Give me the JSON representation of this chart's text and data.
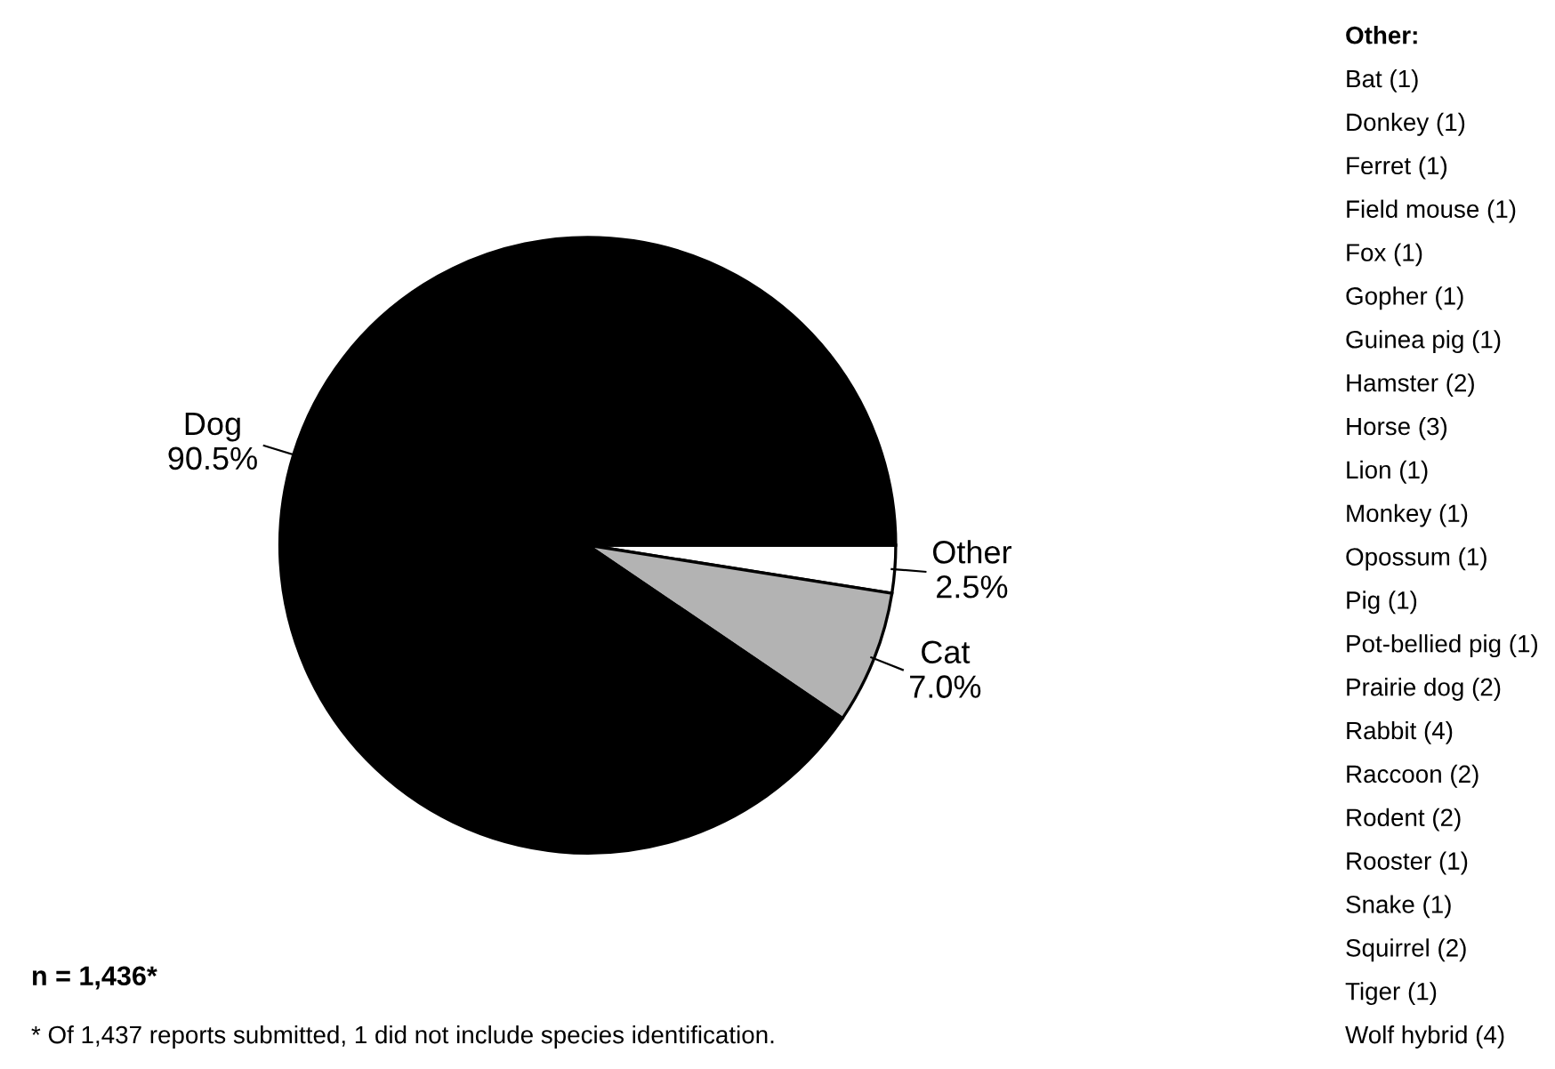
{
  "chart_data": {
    "type": "pie",
    "categories": [
      "Other",
      "Cat",
      "Dog"
    ],
    "values": [
      2.5,
      7.0,
      90.5
    ],
    "value_labels": [
      "2.5%",
      "7.0%",
      "90.5%"
    ],
    "colors": [
      "#ffffff",
      "#b3b3b3",
      "#000000"
    ],
    "legend": false,
    "annotations": [
      "n = 1,436*",
      "* Of 1,437 reports submitted, 1 did not include species identification.",
      "Other:",
      "Bat (1)",
      "Donkey (1)",
      "Ferret (1)",
      "Field mouse (1)",
      "Fox (1)",
      "Gopher (1)",
      "Guinea pig (1)",
      "Hamster (2)",
      "Horse (3)",
      "Lion (1)",
      "Monkey (1)",
      "Opossum (1)",
      "Pig (1)",
      "Pot-bellied pig (1)",
      "Prairie dog (2)",
      "Rabbit (4)",
      "Raccoon (2)",
      "Rodent (2)",
      "Rooster (1)",
      "Snake (1)",
      "Squirrel (2)",
      "Tiger (1)",
      "Wolf hybrid (4)"
    ]
  }
}
